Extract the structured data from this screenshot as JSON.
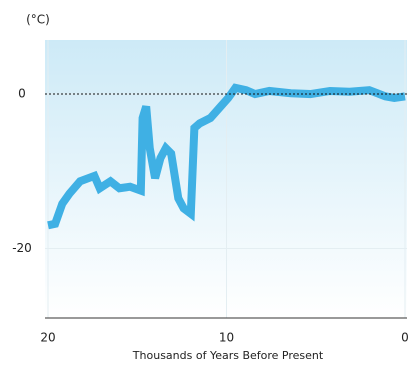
{
  "chart_data": {
    "type": "line",
    "y_unit_label": "(°C)",
    "x_label": "Thousands of Years Before Present",
    "x": [
      20,
      19.6,
      19.2,
      18.8,
      18.2,
      17.4,
      17.1,
      16.5,
      16.0,
      15.4,
      14.8,
      14.7,
      14.5,
      14.3,
      14.0,
      13.7,
      13.4,
      13.1,
      12.7,
      12.4,
      12.0,
      11.8,
      11.5,
      10.9,
      10.4,
      9.9,
      9.5,
      8.9,
      8.4,
      7.6,
      6.4,
      5.3,
      4.2,
      3.1,
      2.0,
      1.1,
      0.6,
      0.0
    ],
    "series": [
      {
        "color": "#3fb0e4",
        "values": [
          -17,
          -16.8,
          -14.2,
          -12.9,
          -11.3,
          -10.6,
          -12.2,
          -11.3,
          -12.2,
          -12,
          -12.5,
          -3.1,
          -1.6,
          -7,
          -10.9,
          -8.3,
          -7,
          -7.7,
          -13.5,
          -14.8,
          -15.5,
          -4.4,
          -3.8,
          -3.1,
          -1.8,
          -0.5,
          0.8,
          0.5,
          0,
          0.4,
          0.1,
          0,
          0.4,
          0.3,
          0.5,
          -0.3,
          -0.5,
          -0.3
        ]
      }
    ],
    "xlim": [
      20,
      0
    ],
    "xticks": [
      20,
      10,
      0
    ],
    "ylim": [
      -29,
      7
    ],
    "yticks": [
      0,
      -20
    ],
    "reference_line": 0
  }
}
